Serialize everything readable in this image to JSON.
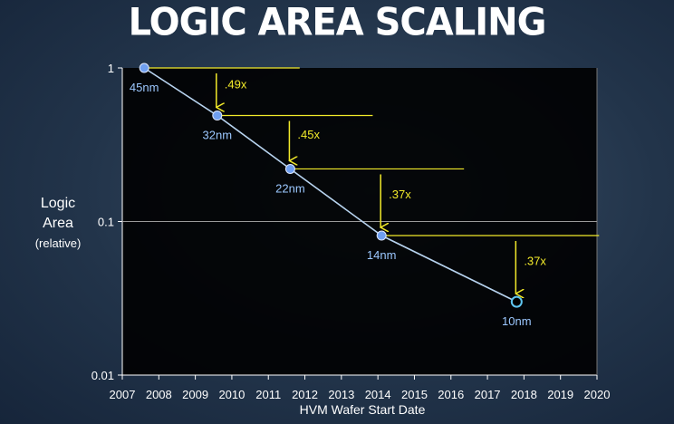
{
  "title": "LOGIC AREA SCALING",
  "chart_data": {
    "type": "scatter",
    "title": "LOGIC AREA SCALING",
    "xlabel": "HVM Wafer Start Date",
    "ylabel": {
      "line1": "Logic",
      "line2": "Area",
      "line3": "(relative)"
    },
    "xlim": [
      2007,
      2020
    ],
    "ylim": [
      0.01,
      1
    ],
    "yscale": "log",
    "x_ticks": [
      "2007",
      "2008",
      "2009",
      "2010",
      "2011",
      "2012",
      "2013",
      "2014",
      "2015",
      "2016",
      "2017",
      "2018",
      "2019",
      "2020"
    ],
    "y_ticks": [
      {
        "label": "1",
        "value": 1
      },
      {
        "label": "0.1",
        "value": 0.1
      },
      {
        "label": "0.01",
        "value": 0.01
      }
    ],
    "grid": "y at 0.1",
    "points": [
      {
        "label": "45nm",
        "x": 2007.6,
        "y": 1.0,
        "projected": false
      },
      {
        "label": "32nm",
        "x": 2009.6,
        "y": 0.49,
        "projected": false
      },
      {
        "label": "22nm",
        "x": 2011.6,
        "y": 0.22,
        "projected": false
      },
      {
        "label": "14nm",
        "x": 2014.1,
        "y": 0.081,
        "projected": false
      },
      {
        "label": "10nm",
        "x": 2017.8,
        "y": 0.03,
        "projected": true
      }
    ],
    "annotations": [
      ".49x",
      ".45x",
      ".37x",
      ".37x"
    ],
    "colors": {
      "line": "#b8d4f0",
      "point": "#6f9ff0",
      "label": "#9cc8ff",
      "arrow": "#f2ea2a",
      "plot_bg": "#000000"
    }
  }
}
